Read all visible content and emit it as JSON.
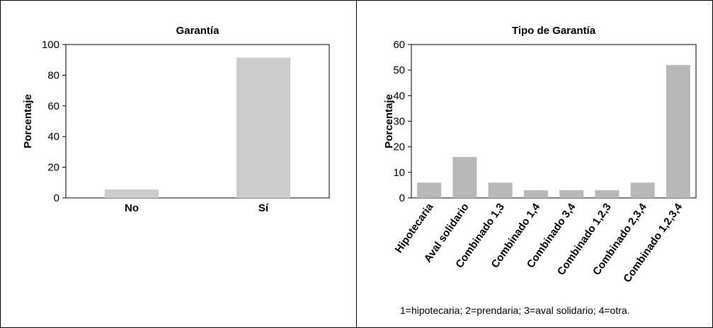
{
  "chart_data": [
    {
      "type": "bar",
      "title": "Garantía",
      "xlabel": "",
      "ylabel": "Porcentaje",
      "categories": [
        "No",
        "Sí"
      ],
      "values": [
        5.5,
        91.5
      ],
      "ylim": [
        0,
        100
      ],
      "yticks": [
        0,
        20,
        40,
        60,
        80,
        100
      ],
      "color": "#cccccc"
    },
    {
      "type": "bar",
      "title": "Tipo de Garantía",
      "xlabel": "",
      "ylabel": "Porcentaje",
      "categories": [
        "Hipotecaria",
        "Aval solidario",
        "Combinado 1,3",
        "Combinado 1,4",
        "Combinado 3,4",
        "Combinado 1,2,3",
        "Combinado 2,3,4",
        "Combinado 1,2,3,4"
      ],
      "values": [
        6,
        16,
        6,
        3,
        3,
        3,
        6,
        52
      ],
      "ylim": [
        0,
        60
      ],
      "yticks": [
        0,
        10,
        20,
        30,
        40,
        50,
        60
      ],
      "color": "#b8b8b8"
    }
  ],
  "footnote": "1=hipotecaria; 2=prendaria; 3=aval solidario; 4=otra."
}
